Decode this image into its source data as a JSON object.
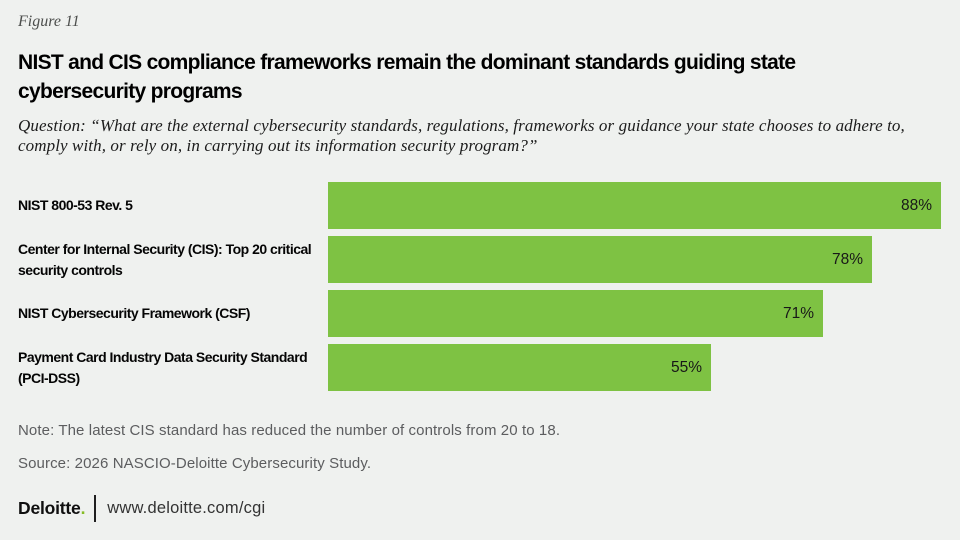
{
  "figure_label": "Figure 11",
  "title": "NIST and CIS compliance frameworks remain the dominant standards guiding state cybersecurity programs",
  "question": "Question: “What are the external cybersecurity standards, regulations, frameworks or guidance your state chooses to adhere to, comply with, or rely on, in carrying out its information security program?”",
  "chart_data": {
    "type": "bar",
    "orientation": "horizontal",
    "categories": [
      "NIST 800-53 Rev. 5",
      "Center for Internal Security (CIS): Top 20 critical security controls",
      "NIST Cybersecurity Framework (CSF)",
      "Payment Card Industry Data Security Standard (PCI-DSS)"
    ],
    "values": [
      88,
      78,
      71,
      55
    ],
    "value_labels": [
      "88%",
      "78%",
      "71%",
      "55%"
    ],
    "xlim": [
      0,
      100
    ],
    "grid": false,
    "legend": "none",
    "bar_color": "#7EC243",
    "value_label_position": "inside-end"
  },
  "note": "Note: The latest CIS standard has reduced the number of controls from 20 to 18.",
  "source": "Source: 2026 NASCIO-Deloitte Cybersecurity Study.",
  "footer": {
    "brand": "Deloitte",
    "brand_dot": ".",
    "url": "www.deloitte.com/cgi"
  },
  "colors": {
    "background": "#EFF1EF",
    "bar_green": "#7EC243",
    "deloitte_green": "#86BC25",
    "title_text": "#000000",
    "muted_text": "#5c5d5f"
  }
}
